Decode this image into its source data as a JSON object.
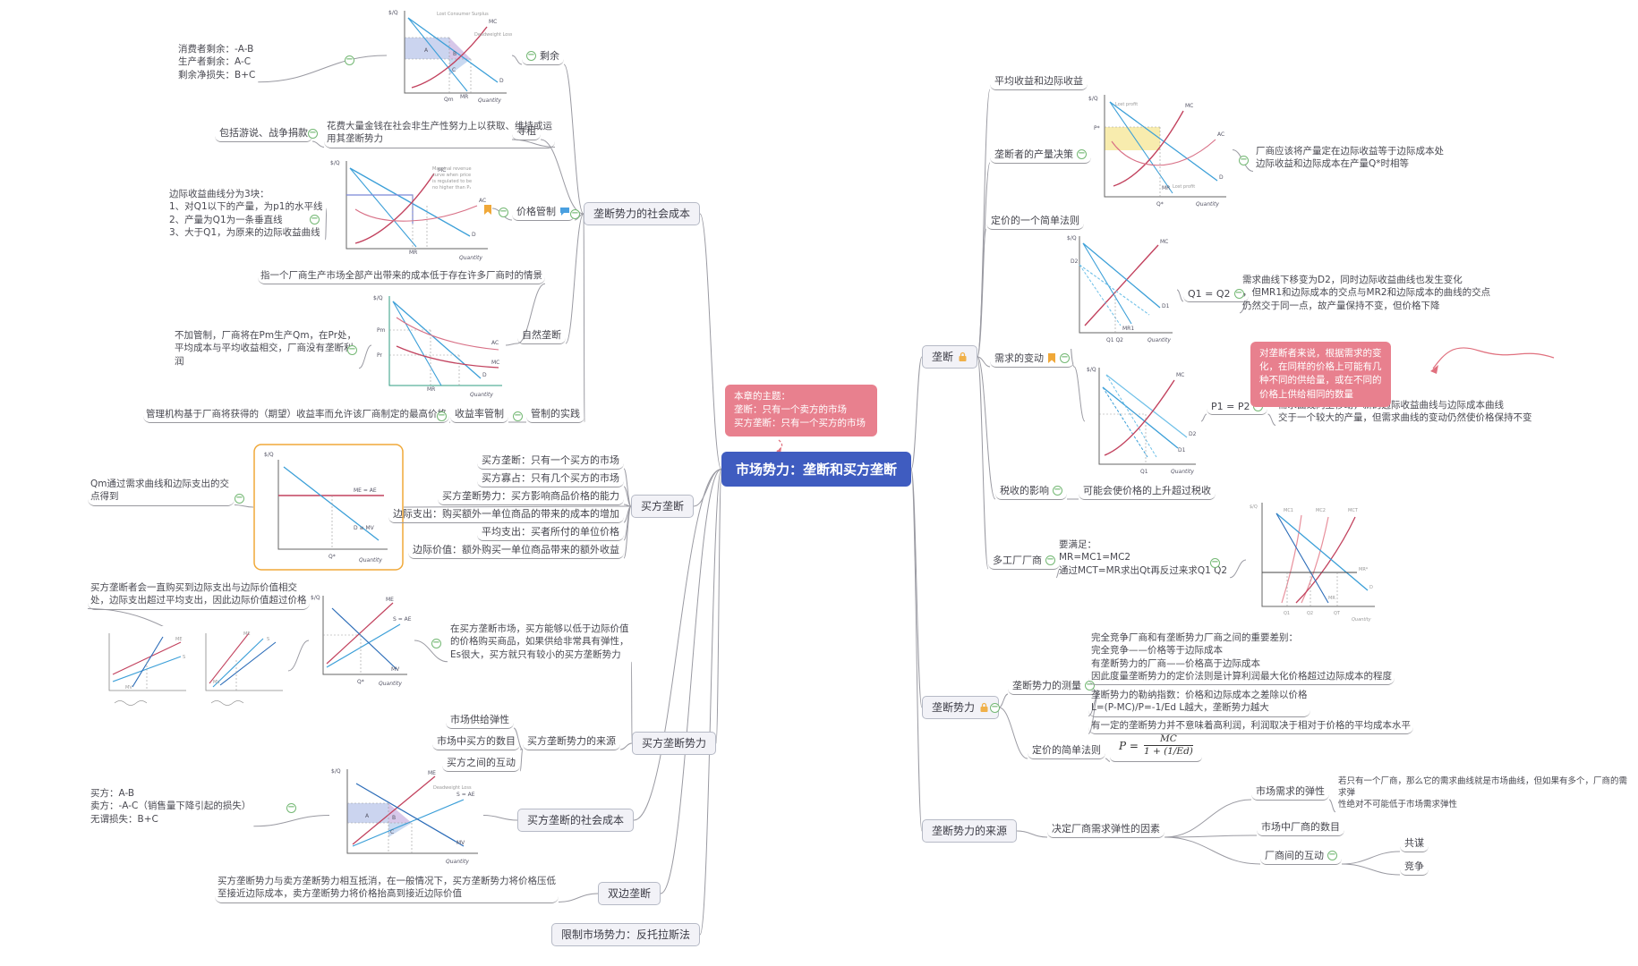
{
  "center": {
    "title": "市场势力：垄断和买方垄断",
    "note": "本章的主题：\n垄断：只有一个卖方的市场\n买方垄断：只有一个买方的市场"
  },
  "left": {
    "social_cost": {
      "label": "垄断势力的社会成本",
      "surplus": {
        "label": "剩余",
        "note": "消费者剩余：-A-B\n生产者剩余：A-C\n剩余净损失：B+C"
      },
      "rent": {
        "label": "寻租",
        "desc": "花费大量金钱在社会非生产性努力上以获取、维持或运\n用其垄断势力",
        "examples": "包括游说、战争捐款"
      },
      "price_control": {
        "label": "价格管制",
        "mr_blocks": "边际收益曲线分为3块：\n1、对Q1以下的产量，为p1的水平线\n2、产量为Q1为一条垂直线\n3、大于Q1，为原来的边际收益曲线"
      },
      "natural": {
        "label": "自然垄断",
        "definition": "指一个厂商生产市场全部产出带来的成本低于存在许多厂商时的情景",
        "no_regulation": "不加管制，厂商将在Pm生产Qm，在Pr处，\n平均成本与平均收益相交，厂商没有垄断利\n润"
      },
      "practice": {
        "label": "管制的实践",
        "rate_label": "收益率管制",
        "desc": "管理机构基于厂商将获得的（期望）收益率而允许该厂商制定的最高价格"
      }
    },
    "monopsony": {
      "label": "买方垄断",
      "items": [
        "买方垄断：只有一个买方的市场",
        "买方寡占：只有几个买方的市场",
        "买方垄断势力：买方影响商品价格的能力",
        "边际支出：购买额外一单位商品的带来的成本的增加",
        "平均支出：买者所付的单位价格",
        "边际价值：额外购买一单位商品带来的额外收益"
      ],
      "qm": "Qm通过需求曲线和边际支出的交点得到"
    },
    "power": {
      "label": "买方垄断势力",
      "buy_until": "买方垄断者会一直购买到边际支出与边际价值相交\n处，边际支出超过平均支出，因此边际价值超过价格",
      "market_note": "在买方垄断市场，买方能够以低于边际价值\n的价格购买商品，如果供给非常具有弹性，\nEs很大，买方就只有较小的买方垄断势力",
      "sources_label": "买方垄断势力的来源",
      "sources": [
        "市场供给弹性",
        "市场中买方的数目",
        "买方之间的互动"
      ]
    },
    "cost": {
      "label": "买方垄断的社会成本",
      "note": "买方：A-B\n卖方：-A-C（销售量下降引起的损失）\n无谓损失：B+C"
    },
    "bilateral": {
      "label": "双边垄断",
      "desc": "买方垄断势力与卖方垄断势力相互抵消，在一般情况下，买方垄断势力将价格压低\n至接近边际成本，卖方垄断势力将价格抬高到接近边际价值"
    },
    "antitrust": {
      "label": "限制市场势力：反托拉斯法"
    }
  },
  "right": {
    "monopoly": {
      "label": "垄断",
      "avg_rev": "平均收益和边际收益",
      "output": {
        "label": "垄断者的产量决策",
        "note": "厂商应该将产量定在边际收益等于边际成本处\n边际收益和边际成本在产量Q*时相等"
      },
      "rule1": "定价的一个简单法则",
      "demand": {
        "label": "需求的变动",
        "shift1_tag": "Q1 = Q2",
        "shift1_note": "需求曲线下移变为D2，同时边际收益曲线也发生变化\n，但MR1和边际成本的交点与MR2和边际成本的曲线的交点\n仍然交于同一点，故产量保持不变，但价格下降",
        "supply_note": "对垄断者来说，根据需求的变\n化，在同样的价格上可能有几\n种不同的供给量，或在不同的\n价格上供给相同的数量",
        "shift2_tag": "P1 = P2",
        "shift2_note": "需求曲线向上移动，新的边际收益曲线与边际成本曲线\n交于一个较大的产量，但需求曲线的变动仍然使价格保持不变"
      },
      "tax": {
        "label": "税收的影响",
        "note": "可能会使价格的上升超过税收"
      },
      "multi": {
        "label": "多工厂厂商",
        "note": "要满足：\nMR=MC1=MC2\n通过MCT=MR求出Qt再反过来求Q1 Q2"
      }
    },
    "power": {
      "label": "垄断势力",
      "measure_label": "垄断势力的测量",
      "m1": "完全竞争厂商和有垄断势力厂商之间的重要差别：\n完全竞争——价格等于边际成本\n有垄断势力的厂商——价格高于边际成本\n因此度量垄断势力的定价法则是计算利润最大化价格超过边际成本的程度",
      "m2": "垄断势力的勒纳指数：价格和边际成本之差除以价格\nL=(P-MC)/P=-1/Ed L越大，垄断势力越大",
      "m3": "有一定的垄断势力并不意味着高利润，利润取决于相对于价格的平均成本水平",
      "rule2": "定价的简单法则",
      "formula": {
        "lhs": "P =",
        "num": "MC",
        "den": "1 + (1/Ed)"
      }
    },
    "sources": {
      "label": "垄断势力的来源",
      "factor": "决定厂商需求弹性的因素",
      "elasticity": {
        "label": "市场需求的弹性",
        "note": "若只有一个厂商，那么它的需求曲线就是市场曲线，但如果有多个，厂商的需求弹\n性绝对不可能低于市场需求弹性"
      },
      "firm_count": "市场中厂商的数目",
      "interaction": {
        "label": "厂商间的互动",
        "collusion": "共谋",
        "competition": "竞争"
      }
    }
  },
  "graphs": {
    "surplus": {
      "y": "$/Q",
      "x": "Quantity",
      "a": "A",
      "b": "B",
      "c": "C",
      "lost": "Lost Consumer Surplus",
      "dwl": "Deadweight Loss",
      "mc": "MC",
      "mr": "MR",
      "d": "D",
      "qm": "Qm"
    },
    "price": {
      "y": "$/Q",
      "x": "Quantity",
      "mc": "MC",
      "ac": "AC",
      "mr": "MR",
      "d": "D",
      "n1": "Marginal revenue",
      "n2": "curve when price",
      "n3": "is regulated to be",
      "n4": "no higher than P₁"
    },
    "natural": {
      "y": "$/Q",
      "x": "Quantity",
      "pm": "Pm",
      "pr": "Pr",
      "ac": "AC",
      "mc": "MC",
      "mr": "MR",
      "d": "D"
    },
    "monopsony": {
      "y": "$/Q",
      "x": "Quantity",
      "me": "ME = AE",
      "d": "D ≡ MV",
      "q": "Q*"
    },
    "pair": {
      "g1me": "ME",
      "g1s": "S",
      "g1mv": "MV",
      "g2me": "ME",
      "g2s": "S",
      "g2mv": "MV"
    },
    "small2": {
      "y": "$/Q",
      "x": "Quantity",
      "me": "ME",
      "s": "S = AE",
      "mv": "MV",
      "q": "Q*"
    },
    "moncost": {
      "y": "$/Q",
      "x": "Quantity",
      "me": "ME",
      "s": "S = AE",
      "mv": "MV",
      "a": "A",
      "b": "B",
      "c": "C",
      "dwl": "Deadweight Loss"
    },
    "output": {
      "y": "$/Q",
      "x": "Quantity",
      "mc": "MC",
      "ac": "AC",
      "mr": "MR",
      "d": "D",
      "q": "Q*",
      "p": "P*",
      "lp1": "Lost profit",
      "lp2": "Lost profit"
    },
    "shift1": {
      "y": "$/Q",
      "x": "Quantity",
      "mc": "MC",
      "d1": "D1",
      "d2": "D2",
      "mr1": "MR1",
      "q": "Q1 Q2"
    },
    "shift2": {
      "y": "$/Q",
      "x": "Quantity",
      "mc": "MC",
      "d1": "D1",
      "d2": "D2",
      "q": "Q1"
    },
    "multi": {
      "y": "$/Q",
      "x": "Quantity",
      "mc1": "MC1",
      "mc2": "MC2",
      "mct": "MCT",
      "mrs": "MR*",
      "d": "D",
      "mr": "MR",
      "q1": "Q1",
      "q2": "Q2",
      "qt": "QT"
    }
  }
}
